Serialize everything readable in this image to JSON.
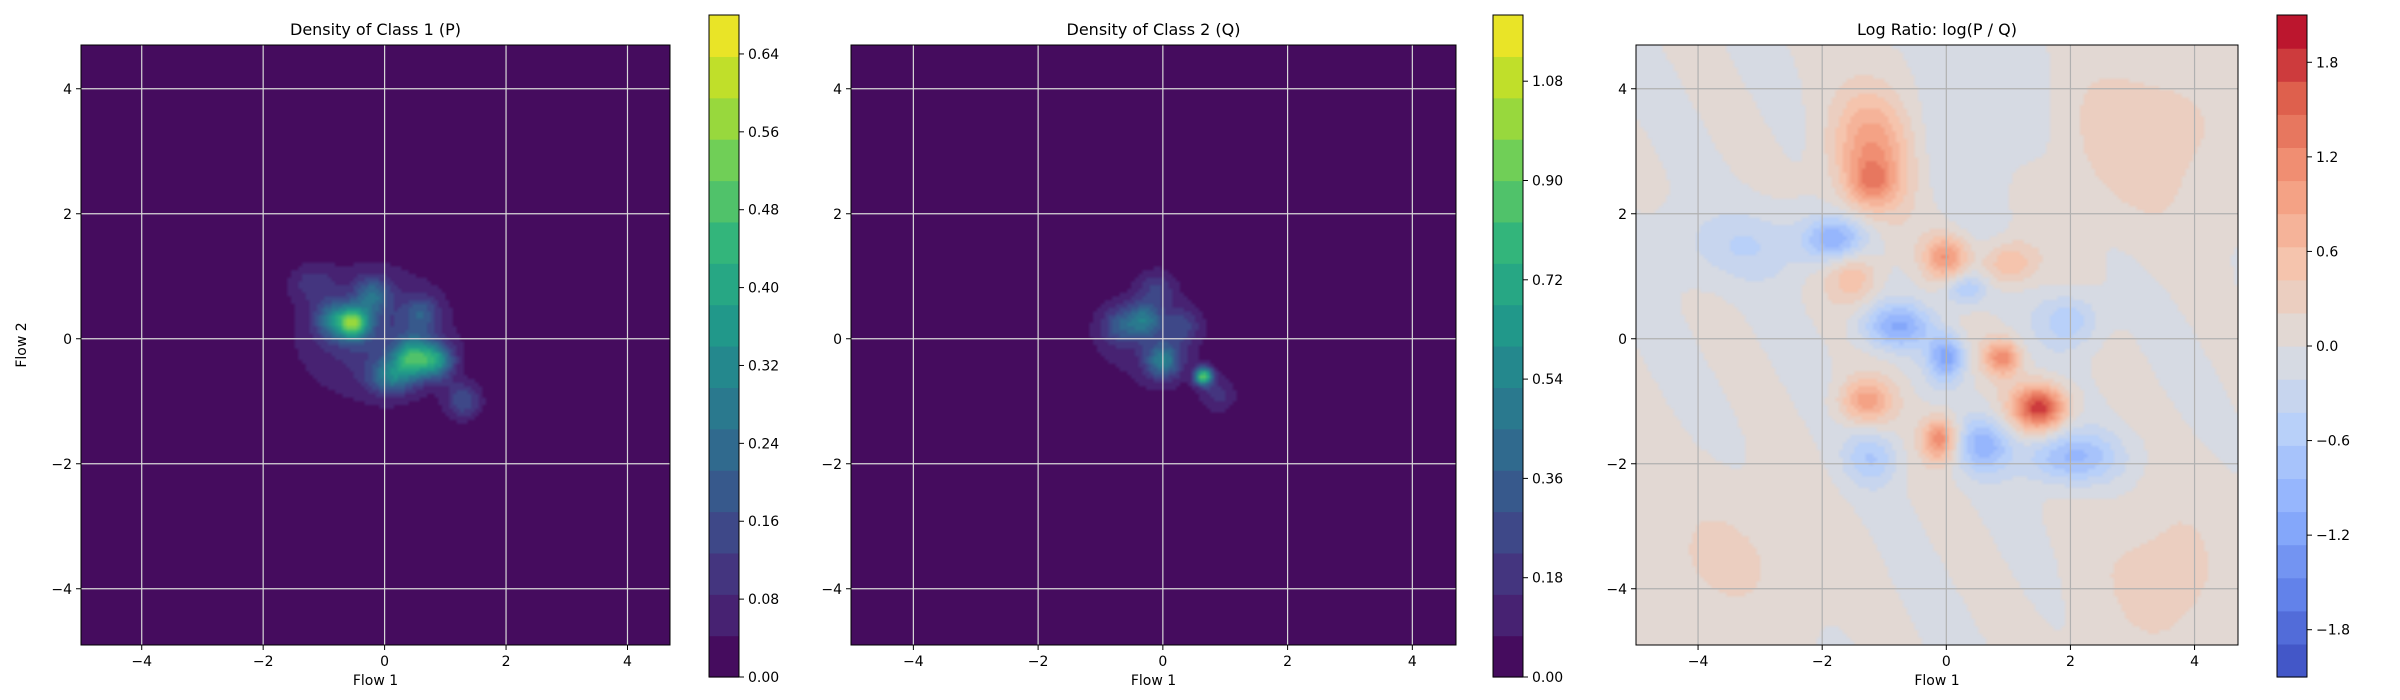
{
  "chart_data": [
    {
      "type": "heatmap",
      "title": "Density of Class 1 (P)",
      "xlabel": "Flow 1",
      "ylabel": "Flow 2",
      "xlim": [
        -5,
        4.7
      ],
      "ylim": [
        -4.9,
        4.7
      ],
      "xticks": [
        -4,
        -2,
        0,
        2,
        4
      ],
      "yticks": [
        -4,
        -2,
        0,
        2,
        4
      ],
      "grid": true,
      "colormap": "viridis",
      "colorbar": {
        "range": [
          0,
          0.68
        ],
        "ticks": [
          0.0,
          0.08,
          0.16,
          0.24,
          0.32,
          0.4,
          0.48,
          0.56,
          0.64
        ],
        "tick_labels": [
          "0.00",
          "0.08",
          "0.16",
          "0.24",
          "0.32",
          "0.40",
          "0.48",
          "0.56",
          "0.64"
        ]
      },
      "blobs": [
        {
          "x": -0.2,
          "y": 0.1,
          "sx": 0.9,
          "sy": 0.75,
          "w": 0.12
        },
        {
          "x": -0.5,
          "y": 0.25,
          "sx": 0.18,
          "sy": 0.18,
          "w": 0.42
        },
        {
          "x": -0.85,
          "y": 0.3,
          "sx": 0.2,
          "sy": 0.2,
          "w": 0.22
        },
        {
          "x": 0.45,
          "y": -0.3,
          "sx": 0.22,
          "sy": 0.22,
          "w": 0.35
        },
        {
          "x": 0.85,
          "y": -0.35,
          "sx": 0.2,
          "sy": 0.2,
          "w": 0.3
        },
        {
          "x": 0.1,
          "y": -0.6,
          "sx": 0.25,
          "sy": 0.2,
          "w": 0.22
        },
        {
          "x": 1.3,
          "y": -1.0,
          "sx": 0.2,
          "sy": 0.2,
          "w": 0.16
        },
        {
          "x": -0.2,
          "y": 0.7,
          "sx": 0.2,
          "sy": 0.2,
          "w": 0.18
        },
        {
          "x": -1.2,
          "y": 0.9,
          "sx": 0.25,
          "sy": 0.2,
          "w": 0.08
        },
        {
          "x": 0.6,
          "y": 0.4,
          "sx": 0.2,
          "sy": 0.2,
          "w": 0.14
        }
      ]
    },
    {
      "type": "heatmap",
      "title": "Density of Class 2 (Q)",
      "xlabel": "Flow 1",
      "ylabel": "",
      "xlim": [
        -5,
        4.7
      ],
      "ylim": [
        -4.9,
        4.7
      ],
      "xticks": [
        -4,
        -2,
        0,
        2,
        4
      ],
      "yticks": [
        -4,
        -2,
        0,
        2,
        4
      ],
      "grid": true,
      "colormap": "viridis",
      "colorbar": {
        "range": [
          0,
          1.2
        ],
        "ticks": [
          0.0,
          0.18,
          0.36,
          0.54,
          0.72,
          0.9,
          1.08
        ],
        "tick_labels": [
          "0.00",
          "0.18",
          "0.36",
          "0.54",
          "0.72",
          "0.90",
          "1.08"
        ]
      },
      "blobs": [
        {
          "x": -0.3,
          "y": 0.0,
          "sx": 0.85,
          "sy": 0.75,
          "w": 0.1
        },
        {
          "x": -0.3,
          "y": 0.3,
          "sx": 0.2,
          "sy": 0.2,
          "w": 0.4
        },
        {
          "x": 0.0,
          "y": -0.35,
          "sx": 0.2,
          "sy": 0.2,
          "w": 0.45
        },
        {
          "x": 0.65,
          "y": -0.6,
          "sx": 0.1,
          "sy": 0.1,
          "w": 0.85
        },
        {
          "x": -0.7,
          "y": 0.2,
          "sx": 0.2,
          "sy": 0.2,
          "w": 0.25
        },
        {
          "x": 0.3,
          "y": 0.2,
          "sx": 0.2,
          "sy": 0.2,
          "w": 0.2
        },
        {
          "x": -0.1,
          "y": 0.8,
          "sx": 0.2,
          "sy": 0.2,
          "w": 0.18
        },
        {
          "x": 0.9,
          "y": -0.9,
          "sx": 0.2,
          "sy": 0.2,
          "w": 0.16
        }
      ]
    },
    {
      "type": "heatmap",
      "title": "Log Ratio: log(P / Q)",
      "xlabel": "Flow 1",
      "ylabel": "",
      "xlim": [
        -5,
        4.7
      ],
      "ylim": [
        -4.9,
        4.7
      ],
      "xticks": [
        -4,
        -2,
        0,
        2,
        4
      ],
      "yticks": [
        -4,
        -2,
        0,
        2,
        4
      ],
      "grid": true,
      "colormap": "coolwarm",
      "colorbar": {
        "range": [
          -2.1,
          2.1
        ],
        "ticks": [
          -1.8,
          -1.2,
          -0.6,
          0.0,
          0.6,
          1.2,
          1.8
        ],
        "tick_labels": [
          "−1.8",
          "−1.2",
          "−0.6",
          "0.0",
          "0.6",
          "1.2",
          "1.8"
        ]
      },
      "blobs": [
        {
          "x": -1.2,
          "y": 3.0,
          "sx": 0.45,
          "sy": 0.7,
          "w": 1.0
        },
        {
          "x": -1.2,
          "y": 2.5,
          "sx": 0.25,
          "sy": 0.25,
          "w": 0.6
        },
        {
          "x": 1.5,
          "y": -1.1,
          "sx": 0.3,
          "sy": 0.25,
          "w": 1.8
        },
        {
          "x": 0.0,
          "y": 1.3,
          "sx": 0.25,
          "sy": 0.25,
          "w": 1.0
        },
        {
          "x": -0.1,
          "y": -1.6,
          "sx": 0.2,
          "sy": 0.25,
          "w": 1.2
        },
        {
          "x": -1.3,
          "y": -1.0,
          "sx": 0.3,
          "sy": 0.25,
          "w": 0.9
        },
        {
          "x": 0.9,
          "y": -0.3,
          "sx": 0.2,
          "sy": 0.2,
          "w": 1.1
        },
        {
          "x": -1.5,
          "y": 1.0,
          "sx": 0.3,
          "sy": 0.3,
          "w": 0.6
        },
        {
          "x": 1.0,
          "y": 1.2,
          "sx": 0.3,
          "sy": 0.25,
          "w": 0.7
        },
        {
          "x": -1.8,
          "y": 1.6,
          "sx": 0.35,
          "sy": 0.25,
          "w": -1.0
        },
        {
          "x": -0.8,
          "y": 0.2,
          "sx": 0.4,
          "sy": 0.25,
          "w": -1.0
        },
        {
          "x": 0.0,
          "y": -0.3,
          "sx": 0.2,
          "sy": 0.25,
          "w": -1.1
        },
        {
          "x": 0.6,
          "y": -1.7,
          "sx": 0.3,
          "sy": 0.3,
          "w": -0.9
        },
        {
          "x": 2.0,
          "y": -1.9,
          "sx": 0.55,
          "sy": 0.3,
          "w": -0.9
        },
        {
          "x": 2.0,
          "y": 0.3,
          "sx": 0.35,
          "sy": 0.3,
          "w": -0.6
        },
        {
          "x": -1.2,
          "y": -1.9,
          "sx": 0.3,
          "sy": 0.3,
          "w": -0.6
        },
        {
          "x": 0.3,
          "y": 0.8,
          "sx": 0.25,
          "sy": 0.2,
          "w": -0.7
        },
        {
          "x": -3.2,
          "y": 1.5,
          "sx": 0.8,
          "sy": 0.4,
          "w": -0.4
        },
        {
          "x": 3.0,
          "y": 3.2,
          "sx": 1.2,
          "sy": 1.0,
          "w": 0.35
        },
        {
          "x": 3.5,
          "y": -3.8,
          "sx": 0.8,
          "sy": 1.0,
          "w": 0.3
        },
        {
          "x": -3.5,
          "y": -3.5,
          "sx": 1.0,
          "sy": 0.8,
          "w": 0.25
        },
        {
          "x": 0.8,
          "y": 3.5,
          "sx": 0.8,
          "sy": 1.0,
          "w": -0.25
        }
      ]
    }
  ]
}
